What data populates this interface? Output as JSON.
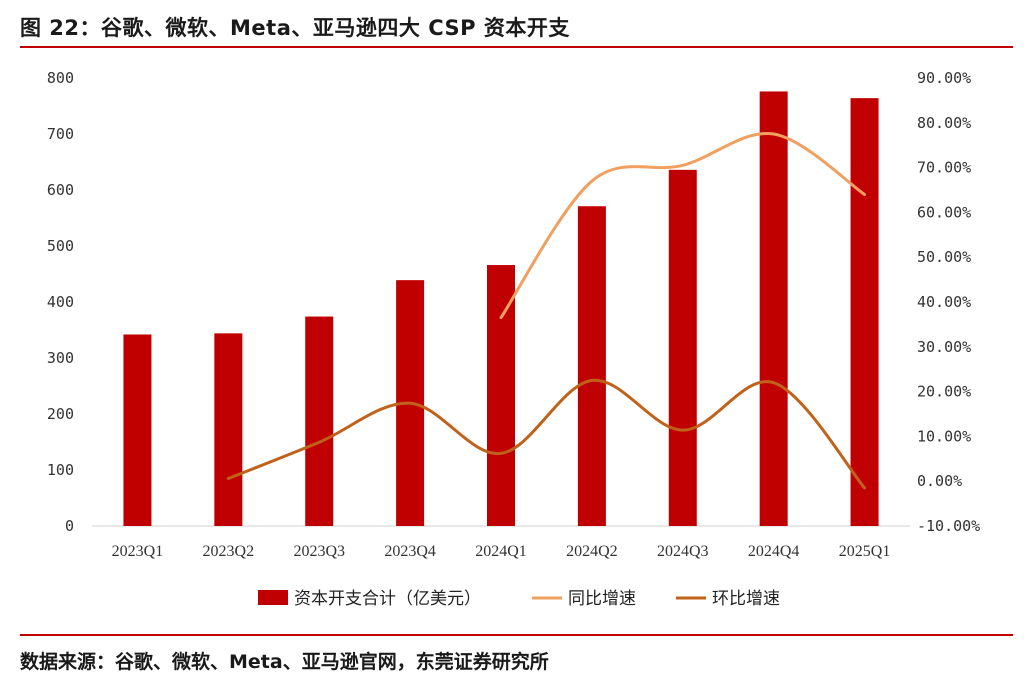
{
  "header": {
    "title": "图 22：谷歌、微软、Meta、亚马逊四大 CSP 资本开支"
  },
  "footer": {
    "source": "数据来源：谷歌、微软、Meta、亚马逊官网，东莞证券研究所"
  },
  "colors": {
    "bar": "#c00000",
    "yoy": "#f0a060",
    "qoq": "#c0621a",
    "rule": "#c00000"
  },
  "chart_data": {
    "type": "bar",
    "categories": [
      "2023Q1",
      "2023Q2",
      "2023Q3",
      "2023Q4",
      "2024Q1",
      "2024Q2",
      "2024Q3",
      "2024Q4",
      "2025Q1"
    ],
    "left_axis": {
      "min": 0,
      "max": 800,
      "ticks": [
        "0",
        "100",
        "200",
        "300",
        "400",
        "500",
        "600",
        "700",
        "800"
      ]
    },
    "right_axis": {
      "min": -10,
      "max": 90,
      "ticks": [
        "-10.00%",
        "0.00%",
        "10.00%",
        "20.00%",
        "30.00%",
        "40.00%",
        "50.00%",
        "60.00%",
        "70.00%",
        "80.00%",
        "90.00%"
      ]
    },
    "series": [
      {
        "name": "资本开支合计（亿美元）",
        "type": "bar",
        "axis": "left",
        "values": [
          342,
          344,
          374,
          439,
          466,
          571,
          636,
          776,
          764
        ]
      },
      {
        "name": "同比增速",
        "type": "line",
        "axis": "right",
        "values": [
          null,
          null,
          null,
          null,
          36.5,
          67.0,
          70.5,
          77.5,
          64.0
        ]
      },
      {
        "name": "环比增速",
        "type": "line",
        "axis": "right",
        "values": [
          null,
          0.6,
          8.7,
          17.4,
          6.2,
          22.5,
          11.4,
          22.0,
          -1.5
        ]
      }
    ],
    "legend_position": "bottom",
    "grid": false
  }
}
